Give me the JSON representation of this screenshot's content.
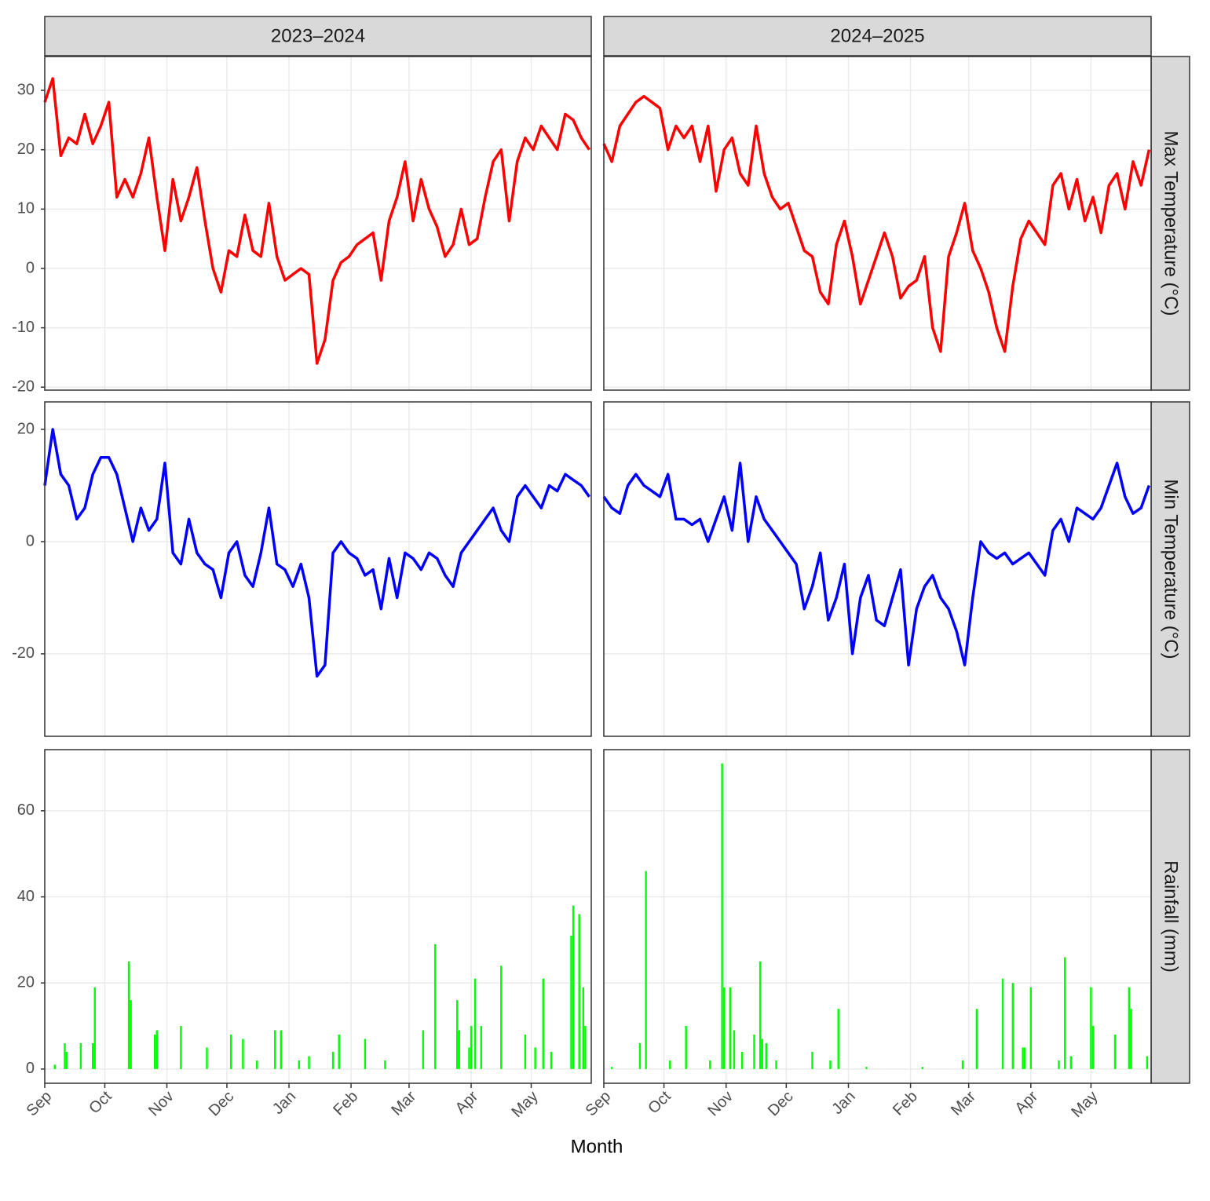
{
  "chart_data": {
    "type": "facet",
    "x_label": "Month",
    "grid": true,
    "xlim": [
      0,
      273
    ],
    "xticks": [
      {
        "value": 0,
        "label": "Sep"
      },
      {
        "value": 30,
        "label": "Oct"
      },
      {
        "value": 61,
        "label": "Nov"
      },
      {
        "value": 91,
        "label": "Dec"
      },
      {
        "value": 122,
        "label": "Jan"
      },
      {
        "value": 153,
        "label": "Feb"
      },
      {
        "value": 182,
        "label": "Mar"
      },
      {
        "value": 213,
        "label": "Apr"
      },
      {
        "value": 243,
        "label": "May"
      }
    ],
    "columns": [
      "2023–2024",
      "2024–2025"
    ],
    "x": [
      0,
      4,
      8,
      12,
      16,
      20,
      24,
      28,
      32,
      36,
      40,
      44,
      48,
      52,
      56,
      60,
      64,
      68,
      72,
      76,
      80,
      84,
      88,
      92,
      96,
      100,
      104,
      108,
      112,
      116,
      120,
      124,
      128,
      132,
      136,
      140,
      144,
      148,
      152,
      156,
      160,
      164,
      168,
      172,
      176,
      180,
      184,
      188,
      192,
      196,
      200,
      204,
      208,
      212,
      216,
      220,
      224,
      228,
      232,
      236,
      240,
      244,
      248,
      252,
      256,
      260,
      264,
      268,
      272
    ],
    "rows": [
      {
        "label": "Max Temperature (°C)",
        "type": "line",
        "color": "#ff0000",
        "ylim": [
          -20.5,
          35.7
        ],
        "yticks": [
          -20,
          -10,
          0,
          10,
          20,
          30
        ],
        "series": [
          {
            "values": [
              28,
              32,
              19,
              22,
              21,
              26,
              21,
              24,
              28,
              12,
              15,
              12,
              16,
              22,
              12,
              3,
              15,
              8,
              12,
              17,
              8,
              0,
              -4,
              3,
              2,
              9,
              3,
              2,
              11,
              2,
              -2,
              -1,
              0,
              -1,
              -16,
              -12,
              -2,
              1,
              2,
              4,
              5,
              6,
              -2,
              8,
              12,
              18,
              8,
              15,
              10,
              7,
              2,
              4,
              10,
              4,
              5,
              12,
              18,
              20,
              8,
              18,
              22,
              20,
              24,
              22,
              20,
              26,
              25,
              22,
              20
            ]
          },
          {
            "values": [
              21,
              18,
              24,
              26,
              28,
              29,
              28,
              27,
              20,
              24,
              22,
              24,
              18,
              24,
              13,
              20,
              22,
              16,
              14,
              24,
              16,
              12,
              10,
              11,
              7,
              3,
              2,
              -4,
              -6,
              4,
              8,
              2,
              -6,
              -2,
              2,
              6,
              2,
              -5,
              -3,
              -2,
              2,
              -10,
              -14,
              2,
              6,
              11,
              3,
              0,
              -4,
              -10,
              -14,
              -3,
              5,
              8,
              6,
              4,
              14,
              16,
              10,
              15,
              8,
              12,
              6,
              14,
              16,
              10,
              18,
              14,
              20
            ]
          }
        ]
      },
      {
        "label": "Min Temperature (°C)",
        "type": "line",
        "color": "#0000ff",
        "ylim": [
          -34.7,
          24.9
        ],
        "yticks": [
          -20,
          0,
          20
        ],
        "series": [
          {
            "values": [
              10,
              20,
              12,
              10,
              4,
              6,
              12,
              15,
              15,
              12,
              6,
              0,
              6,
              2,
              4,
              14,
              -2,
              -4,
              4,
              -2,
              -4,
              -5,
              -10,
              -2,
              0,
              -6,
              -8,
              -2,
              6,
              -4,
              -5,
              -8,
              -4,
              -10,
              -24,
              -22,
              -2,
              0,
              -2,
              -3,
              -6,
              -5,
              -12,
              -3,
              -10,
              -2,
              -3,
              -5,
              -2,
              -3,
              -6,
              -8,
              -2,
              0,
              2,
              4,
              6,
              2,
              0,
              8,
              10,
              8,
              6,
              10,
              9,
              12,
              11,
              10,
              8
            ]
          },
          {
            "values": [
              8,
              6,
              5,
              10,
              12,
              10,
              9,
              8,
              12,
              4,
              4,
              3,
              4,
              0,
              4,
              8,
              2,
              14,
              0,
              8,
              4,
              2,
              0,
              -2,
              -4,
              -12,
              -8,
              -2,
              -14,
              -10,
              -4,
              -20,
              -10,
              -6,
              -14,
              -15,
              -10,
              -5,
              -22,
              -12,
              -8,
              -6,
              -10,
              -12,
              -16,
              -22,
              -10,
              0,
              -2,
              -3,
              -2,
              -4,
              -3,
              -2,
              -4,
              -6,
              2,
              4,
              0,
              6,
              5,
              4,
              6,
              10,
              14,
              8,
              5,
              6,
              10
            ]
          }
        ]
      },
      {
        "label": "Rainfall (mm)",
        "type": "bar",
        "color": "#00ff00",
        "ylim": [
          -3.3,
          74.2
        ],
        "yticks": [
          0,
          20,
          40,
          60
        ],
        "series": [
          {
            "x": [
              5,
              10,
              11,
              18,
              24,
              25,
              42,
              43,
              55,
              56,
              68,
              81,
              93,
              99,
              106,
              115,
              118,
              127,
              132,
              144,
              147,
              160,
              170,
              189,
              195,
              206,
              207,
              212,
              213,
              215,
              218,
              228,
              240,
              245,
              249,
              253,
              263,
              264,
              267,
              269,
              270
            ],
            "values": [
              1,
              6,
              4,
              6,
              6,
              19,
              25,
              16,
              8,
              9,
              10,
              5,
              8,
              7,
              2,
              9,
              9,
              2,
              3,
              4,
              8,
              7,
              2,
              9,
              29,
              16,
              9,
              5,
              10,
              21,
              10,
              24,
              8,
              5,
              21,
              4,
              31,
              38,
              36,
              19,
              10
            ]
          },
          {
            "x": [
              4,
              18,
              21,
              33,
              41,
              53,
              59,
              60,
              63,
              65,
              69,
              75,
              78,
              79,
              81,
              86,
              104,
              113,
              117,
              131,
              159,
              179,
              186,
              199,
              204,
              209,
              210,
              213,
              227,
              230,
              233,
              243,
              244,
              255,
              262,
              263,
              271
            ],
            "values": [
              0.5,
              6,
              46,
              2,
              10,
              2,
              71,
              19,
              19,
              9,
              4,
              8,
              25,
              7,
              6,
              2,
              4,
              2,
              14,
              0.5,
              0.5,
              2,
              14,
              21,
              20,
              5,
              5,
              19,
              2,
              26,
              3,
              19,
              10,
              8,
              19,
              14,
              3
            ]
          }
        ]
      }
    ]
  }
}
